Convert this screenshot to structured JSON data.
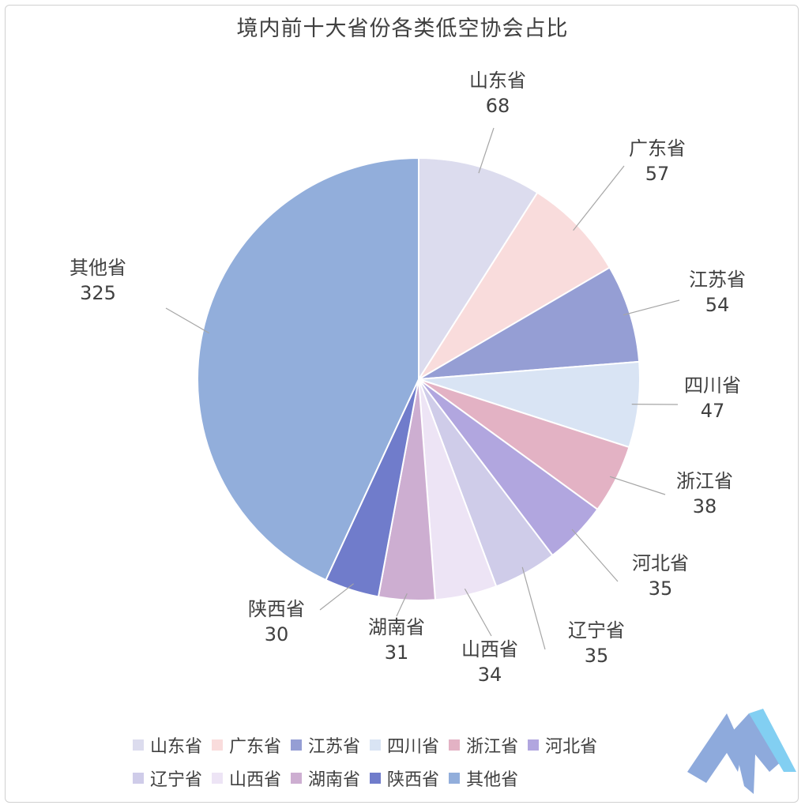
{
  "chart_data": {
    "type": "pie",
    "title": "境内前十大省份各类低空协会占比",
    "categories": [
      "山东省",
      "广东省",
      "江苏省",
      "四川省",
      "浙江省",
      "河北省",
      "辽宁省",
      "山西省",
      "湖南省",
      "陕西省",
      "其他省"
    ],
    "values": [
      68,
      57,
      54,
      47,
      38,
      35,
      35,
      34,
      31,
      30,
      325
    ],
    "colors": [
      "#dcdcee",
      "#f9dcdc",
      "#959ed4",
      "#d9e4f4",
      "#e3b2c4",
      "#b1a6df",
      "#cfcce9",
      "#ede4f5",
      "#cdaed1",
      "#707ccb",
      "#92aedb"
    ],
    "legend_colors": [
      "#dcdcee",
      "#f9dcdc",
      "#959ed4",
      "#d9e4f4",
      "#e3b2c4",
      "#b1a6df",
      "#cfcce9",
      "#ede4f5",
      "#cdaed1",
      "#707ccb",
      "#92aedb"
    ],
    "legend_position": "bottom"
  },
  "logo": {
    "colors": [
      "#8eaadc",
      "#82cff2"
    ]
  }
}
